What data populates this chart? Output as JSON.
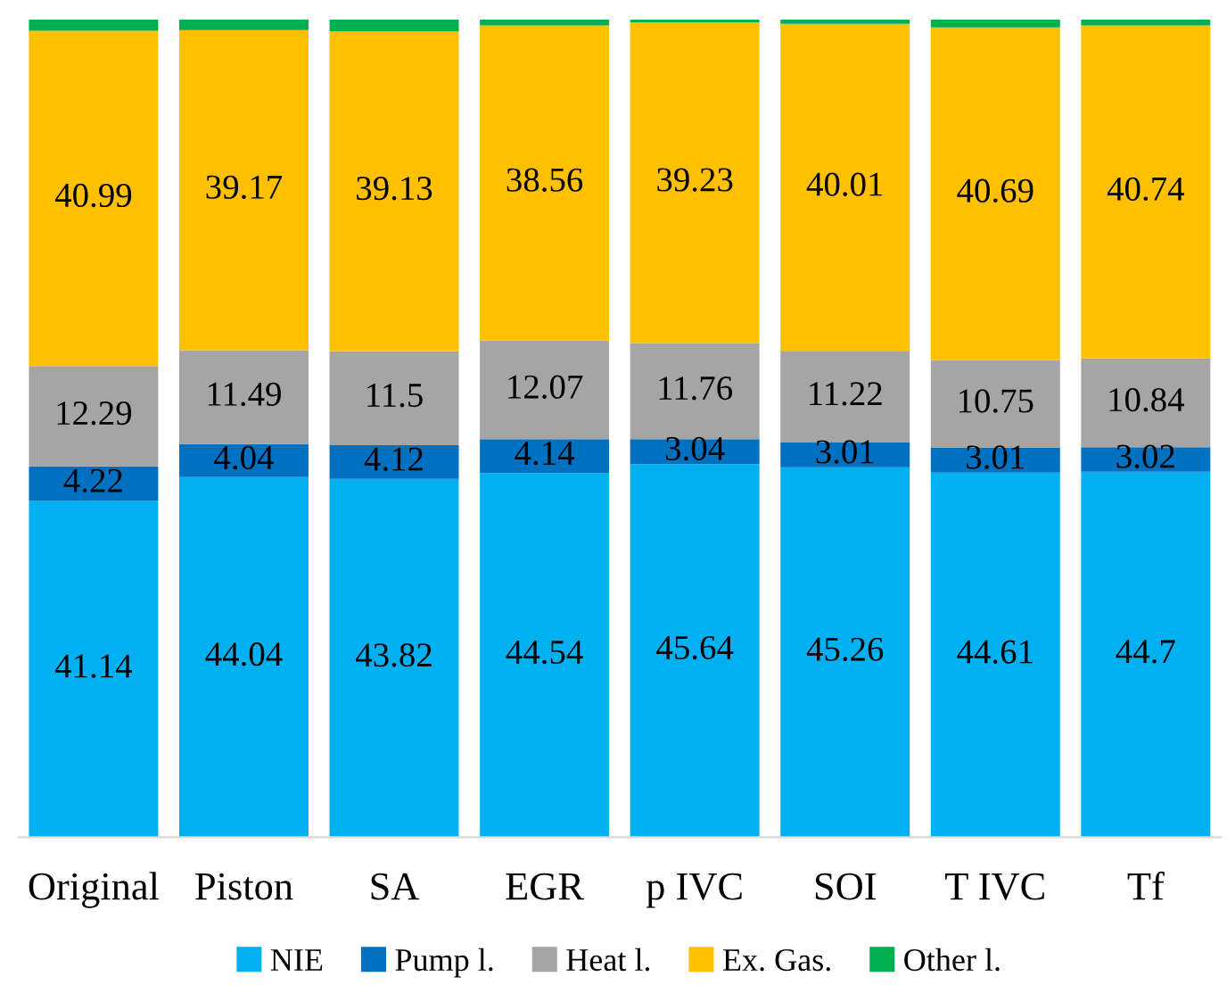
{
  "chart_data": {
    "type": "bar",
    "stacked": true,
    "legend": "bottom",
    "grid": false,
    "categories": [
      "Original",
      "Piston",
      "SA",
      "EGR",
      "p IVC",
      "SOI",
      "T IVC",
      "Tf"
    ],
    "series": [
      {
        "name": "NIE",
        "color": "#00b0f0",
        "values": [
          41.14,
          44.04,
          43.82,
          44.54,
          45.64,
          45.26,
          44.61,
          44.7
        ],
        "value_labels": [
          "41.14",
          "44.04",
          "43.82",
          "44.54",
          "45.64",
          "45.26",
          "44.61",
          "44.7"
        ]
      },
      {
        "name": "Pump l.",
        "color": "#0070c0",
        "values": [
          4.22,
          4.04,
          4.12,
          4.14,
          3.04,
          3.01,
          3.01,
          3.02
        ],
        "value_labels": [
          "4.22",
          "4.04",
          "4.12",
          "4.14",
          "3.04",
          "3.01",
          "3.01",
          "3.02"
        ]
      },
      {
        "name": "Heat l.",
        "color": "#a5a5a5",
        "values": [
          12.29,
          11.49,
          11.5,
          12.07,
          11.76,
          11.22,
          10.75,
          10.84
        ],
        "value_labels": [
          "12.29",
          "11.49",
          "11.5",
          "12.07",
          "11.76",
          "11.22",
          "10.75",
          "10.84"
        ]
      },
      {
        "name": "Ex. Gas.",
        "color": "#ffc000",
        "values": [
          40.99,
          39.17,
          39.13,
          38.56,
          39.23,
          40.01,
          40.69,
          40.74
        ],
        "value_labels": [
          "40.99",
          "39.17",
          "39.13",
          "38.56",
          "39.23",
          "40.01",
          "40.69",
          "40.74"
        ]
      },
      {
        "name": "Other l.",
        "color": "#00b050",
        "values": [
          1.36,
          1.26,
          1.43,
          0.69,
          0.33,
          0.5,
          0.94,
          0.7
        ],
        "value_labels": [
          null,
          null,
          null,
          null,
          null,
          null,
          null,
          null
        ]
      }
    ]
  }
}
